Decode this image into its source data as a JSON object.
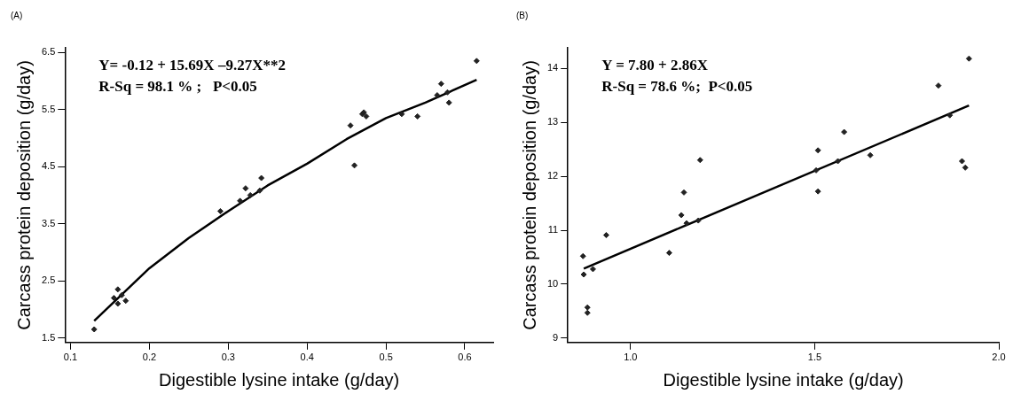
{
  "chart_data": [
    {
      "type": "scatter",
      "title": "(A)",
      "xlabel": "Digestible lysine intake (g/day)",
      "ylabel": "Carcass protein deposition (g/day)",
      "xlim": [
        0.093,
        0.636
      ],
      "xticks": [
        0.1,
        0.2,
        0.3,
        0.4,
        0.5,
        0.6
      ],
      "ylim": [
        1.42,
        6.58
      ],
      "yticks": [
        1.5,
        2.5,
        3.5,
        4.5,
        5.5,
        6.5
      ],
      "grid": false,
      "legend": false,
      "annotations": [
        "Y= -0.12 + 15.69X –9.27X**2",
        "R-Sq = 98.1 % ;   P<0.05"
      ],
      "series": [
        {
          "marker": "diamond",
          "color": "#222222",
          "x": [
            0.13,
            0.155,
            0.16,
            0.16,
            0.165,
            0.17,
            0.29,
            0.315,
            0.322,
            0.328,
            0.34,
            0.342,
            0.455,
            0.46,
            0.47,
            0.472,
            0.475,
            0.52,
            0.54,
            0.565,
            0.57,
            0.578,
            0.58,
            0.615
          ],
          "values": [
            1.65,
            2.2,
            2.35,
            2.1,
            2.25,
            2.15,
            3.72,
            3.9,
            4.12,
            4.0,
            4.08,
            4.3,
            5.22,
            4.52,
            5.42,
            5.45,
            5.38,
            5.42,
            5.38,
            5.75,
            5.95,
            5.8,
            5.62,
            6.35
          ]
        },
        {
          "type": "line",
          "marker": "none",
          "color": "#000000",
          "x": [
            0.13,
            0.2,
            0.25,
            0.3,
            0.35,
            0.4,
            0.45,
            0.5,
            0.55,
            0.615
          ],
          "values": [
            1.8,
            2.72,
            3.25,
            3.72,
            4.17,
            4.55,
            4.98,
            5.35,
            5.62,
            6.02
          ]
        }
      ]
    },
    {
      "type": "scatter",
      "title": "(B)",
      "xlabel": "Digestible lysine intake (g/day)",
      "ylabel": "Carcass protein deposition (g/day)",
      "xlim": [
        0.83,
        2.0
      ],
      "xticks": [
        {
          "value": 1,
          "label": "1.0"
        },
        1.5,
        {
          "value": 2,
          "label": "2.0"
        }
      ],
      "ylim": [
        8.92,
        14.38
      ],
      "yticks": [
        9,
        10,
        11,
        12,
        13,
        14
      ],
      "grid": false,
      "legend": false,
      "annotations": [
        "Y = 7.80 + 2.86X",
        "R-Sq = 78.6 %;  P<0.05"
      ],
      "series": [
        {
          "marker": "diamond",
          "color": "#222222",
          "x": [
            0.871,
            0.873,
            0.898,
            0.883,
            0.883,
            0.934,
            1.105,
            1.138,
            1.145,
            1.152,
            1.184,
            1.189,
            1.504,
            1.509,
            1.509,
            1.563,
            1.58,
            1.651,
            1.836,
            1.867,
            1.9,
            1.909,
            1.919
          ],
          "values": [
            10.52,
            10.18,
            10.28,
            9.57,
            9.47,
            10.91,
            10.58,
            11.28,
            11.7,
            11.13,
            11.18,
            12.3,
            12.11,
            12.48,
            11.72,
            12.28,
            12.82,
            12.39,
            13.68,
            13.13,
            12.28,
            12.16,
            14.18
          ]
        },
        {
          "type": "line",
          "marker": "none",
          "color": "#000000",
          "x": [
            0.873,
            1.919
          ],
          "values": [
            10.29,
            13.31
          ]
        }
      ]
    }
  ]
}
